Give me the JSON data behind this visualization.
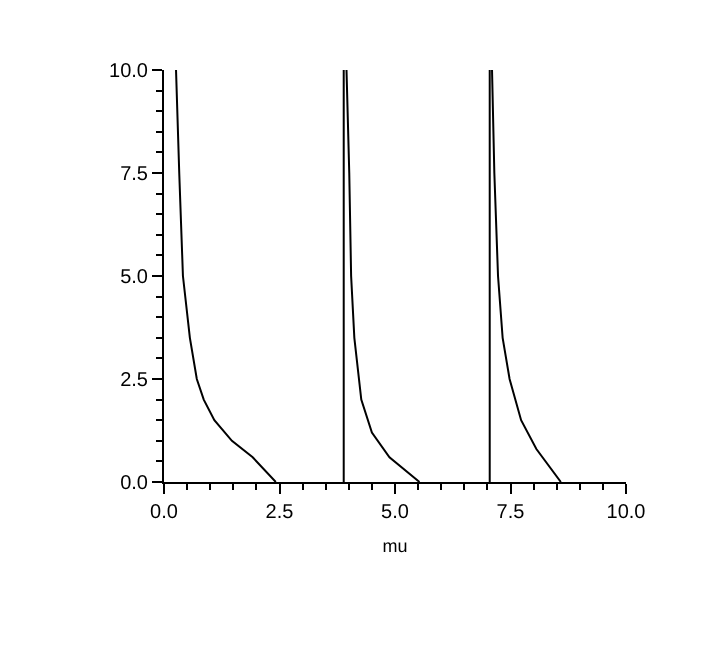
{
  "chart_data": {
    "type": "line",
    "xlabel": "mu",
    "xlim": [
      0,
      10
    ],
    "ylim": [
      0,
      10
    ],
    "xticks": [
      {
        "value": 0,
        "label": "0.0"
      },
      {
        "value": 2.5,
        "label": "2.5"
      },
      {
        "value": 5,
        "label": "5.0"
      },
      {
        "value": 7.5,
        "label": "7.5"
      },
      {
        "value": 10,
        "label": "10.0"
      }
    ],
    "yticks": [
      {
        "value": 0,
        "label": "0.0"
      },
      {
        "value": 2.5,
        "label": "2.5"
      },
      {
        "value": 5,
        "label": "5.0"
      },
      {
        "value": 7.5,
        "label": "7.5"
      },
      {
        "value": 10,
        "label": "10.0"
      }
    ],
    "marker": "none",
    "line_style": "solid",
    "series": [
      {
        "color": "#000000",
        "x": [
          0.26,
          0.33,
          0.41,
          0.56,
          0.71,
          0.86,
          1.09,
          1.47,
          1.92,
          2.42,
          null,
          3.89,
          3.89,
          null,
          3.95,
          4.01,
          4.05,
          4.12,
          4.27,
          4.5,
          4.88,
          5.53,
          null,
          7.05,
          7.05,
          null,
          7.1,
          7.15,
          7.23,
          7.33,
          7.48,
          7.73,
          8.06,
          8.59
        ],
        "values": [
          10,
          7.5,
          5,
          3.5,
          2.5,
          2,
          1.5,
          1,
          0.6,
          0,
          null,
          0,
          10,
          null,
          10,
          7.5,
          5,
          3.5,
          2,
          1.2,
          0.6,
          0,
          null,
          0,
          10,
          null,
          10,
          7.5,
          5,
          3.5,
          2.5,
          1.5,
          0.8,
          0
        ]
      }
    ]
  }
}
